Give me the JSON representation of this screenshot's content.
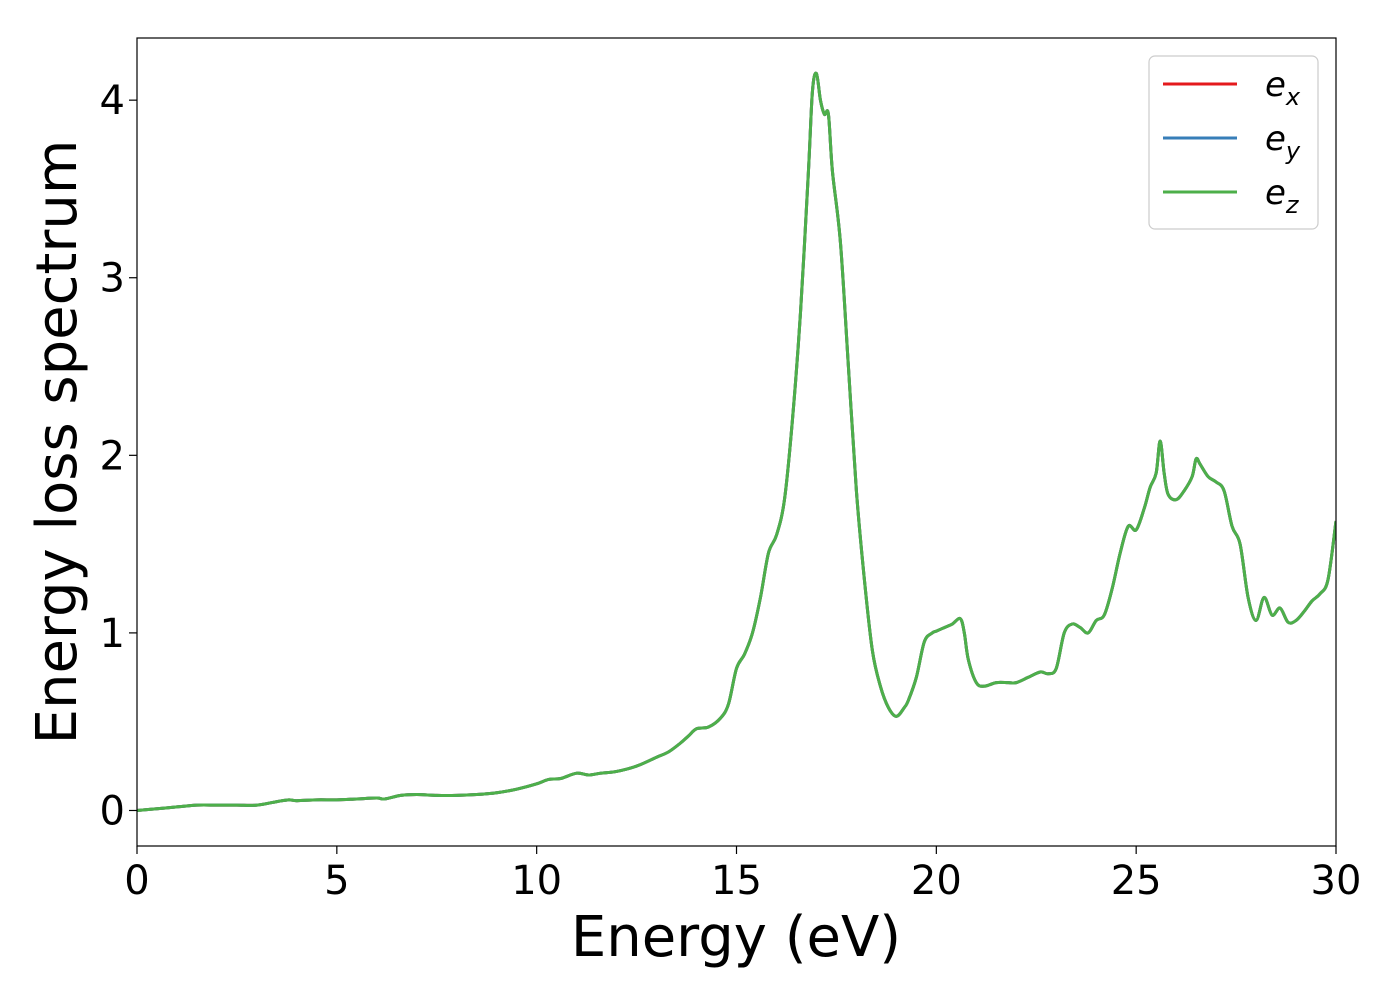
{
  "chart_data": {
    "type": "line",
    "title": "",
    "xlabel": "Energy (eV)",
    "ylabel": "Energy loss spectrum",
    "xlim": [
      0,
      30
    ],
    "ylim": [
      -0.2,
      4.35
    ],
    "xticks": [
      0,
      5,
      10,
      15,
      20,
      25,
      30
    ],
    "yticks": [
      0,
      1,
      2,
      3,
      4
    ],
    "grid": false,
    "legend_position": "top-right",
    "series": [
      {
        "name": "e",
        "subscript": "x",
        "color": "#e41a1c",
        "values_ref": "shared"
      },
      {
        "name": "e",
        "subscript": "y",
        "color": "#377eb8",
        "values_ref": "shared"
      },
      {
        "name": "e",
        "subscript": "z",
        "color": "#4daf4a",
        "values_ref": "shared"
      }
    ],
    "x": [
      0,
      0.5,
      1,
      1.5,
      2,
      2.5,
      3,
      3.5,
      3.8,
      4,
      4.5,
      5,
      5.5,
      6,
      6.2,
      6.6,
      7,
      7.5,
      8,
      8.5,
      9,
      9.5,
      10,
      10.3,
      10.6,
      11,
      11.3,
      11.6,
      12,
      12.5,
      13,
      13.3,
      13.6,
      13.8,
      14,
      14.3,
      14.6,
      14.8,
      15,
      15.2,
      15.4,
      15.6,
      15.8,
      16,
      16.2,
      16.4,
      16.6,
      16.8,
      16.9,
      17,
      17.1,
      17.2,
      17.3,
      17.4,
      17.6,
      17.8,
      18,
      18.2,
      18.4,
      18.6,
      18.8,
      19,
      19.2,
      19.3,
      19.5,
      19.7,
      19.9,
      20,
      20.2,
      20.4,
      20.6,
      20.7,
      20.8,
      21,
      21.2,
      21.5,
      21.8,
      22,
      22.3,
      22.6,
      22.8,
      23,
      23.2,
      23.4,
      23.6,
      23.8,
      24,
      24.2,
      24.4,
      24.6,
      24.8,
      25,
      25.2,
      25.35,
      25.5,
      25.6,
      25.7,
      25.8,
      26,
      26.2,
      26.4,
      26.5,
      26.6,
      26.8,
      27,
      27.2,
      27.4,
      27.6,
      27.8,
      28,
      28.2,
      28.4,
      28.6,
      28.8,
      29,
      29.2,
      29.4,
      29.6,
      29.8,
      30
    ],
    "y": [
      0,
      0.01,
      0.02,
      0.03,
      0.03,
      0.03,
      0.03,
      0.05,
      0.06,
      0.055,
      0.06,
      0.06,
      0.065,
      0.07,
      0.065,
      0.085,
      0.09,
      0.085,
      0.085,
      0.09,
      0.1,
      0.12,
      0.15,
      0.175,
      0.18,
      0.21,
      0.2,
      0.21,
      0.22,
      0.25,
      0.3,
      0.33,
      0.38,
      0.42,
      0.46,
      0.47,
      0.52,
      0.6,
      0.8,
      0.88,
      1.0,
      1.2,
      1.45,
      1.55,
      1.75,
      2.2,
      2.8,
      3.6,
      4.05,
      4.15,
      4.0,
      3.92,
      3.92,
      3.6,
      3.2,
      2.5,
      1.8,
      1.3,
      0.9,
      0.7,
      0.58,
      0.53,
      0.58,
      0.62,
      0.75,
      0.95,
      1.0,
      1.01,
      1.03,
      1.05,
      1.08,
      1.0,
      0.85,
      0.72,
      0.7,
      0.72,
      0.72,
      0.72,
      0.75,
      0.78,
      0.77,
      0.8,
      1.0,
      1.05,
      1.03,
      1.0,
      1.07,
      1.1,
      1.25,
      1.45,
      1.6,
      1.58,
      1.7,
      1.82,
      1.9,
      2.08,
      1.9,
      1.78,
      1.75,
      1.8,
      1.88,
      1.98,
      1.95,
      1.88,
      1.85,
      1.8,
      1.6,
      1.5,
      1.2,
      1.07,
      1.2,
      1.1,
      1.14,
      1.06,
      1.07,
      1.12,
      1.18,
      1.22,
      1.3,
      1.63
    ]
  }
}
